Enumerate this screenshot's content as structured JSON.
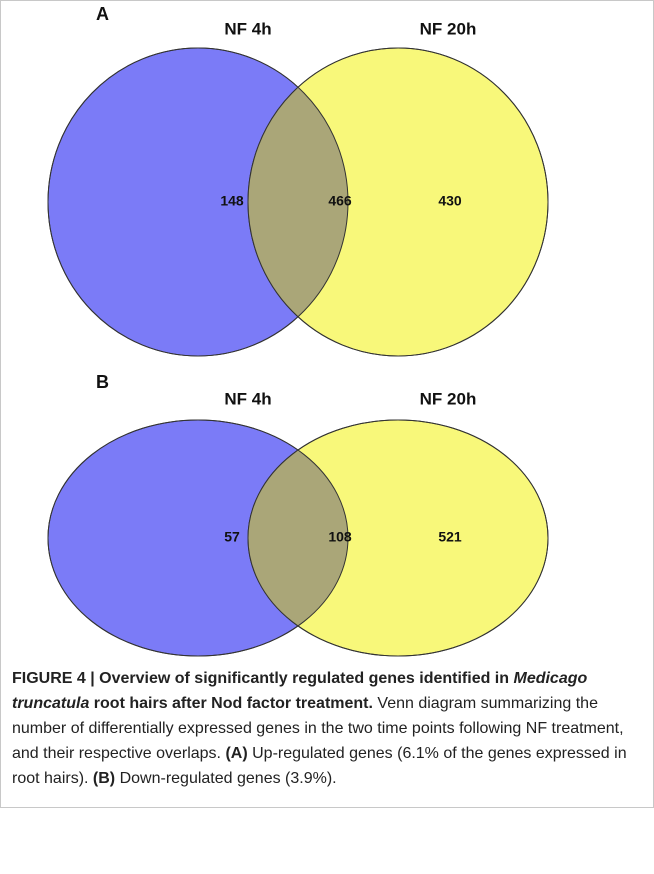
{
  "chart_data": [
    {
      "type": "venn",
      "panel": "A",
      "sets": [
        {
          "name": "NF 4h",
          "color": "#7b7bf7"
        },
        {
          "name": "NF 20h",
          "color": "#f8f87a"
        }
      ],
      "overlap_color": "#aaa678",
      "values": [
        148,
        466,
        430
      ]
    },
    {
      "type": "venn",
      "panel": "B",
      "sets": [
        {
          "name": "NF 4h",
          "color": "#7b7bf7"
        },
        {
          "name": "NF 20h",
          "color": "#f8f87a"
        }
      ],
      "overlap_color": "#aaa678",
      "values": [
        57,
        108,
        521
      ]
    }
  ],
  "caption": [
    {
      "text": "FIGURE 4 | Overview of significantly regulated genes identified in",
      "style": "bold"
    },
    {
      "text": "Medicago truncatula",
      "style": "bold-italic"
    },
    {
      "text": "root hairs after Nod factor treatment.",
      "style": "bold"
    },
    {
      "text": "Venn diagram summarizing the number of differentially expressed genes in the two time points following NF treatment, and their respective overlaps.",
      "style": "normal"
    },
    {
      "text": "(A)",
      "style": "bold"
    },
    {
      "text": "Up-regulated genes (6.1% of the genes expressed in root hairs).",
      "style": "normal"
    },
    {
      "text": "(B)",
      "style": "bold"
    },
    {
      "text": "Down-regulated genes (3.9%).",
      "style": "normal"
    }
  ]
}
